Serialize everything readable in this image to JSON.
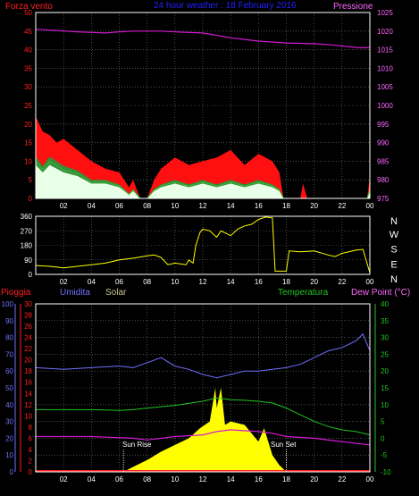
{
  "header": {
    "left": "Forza vento",
    "center": "24 hour weather : 18 February 2016",
    "right": "Pressione"
  },
  "colors": {
    "background": "#000000",
    "grid": "#7a7a7a",
    "frame": "#ffffff",
    "wind_gust": "#ff1010",
    "wind_avg": "#e8ffe8",
    "wind_dark": "#3a8a3a",
    "wind_mid": "#2fbf2f",
    "pressure": "#d21ad2",
    "direction": "#ffff00",
    "humidity": "#7070ff",
    "temperature": "#22c322",
    "dewpoint": "#d21ad2",
    "solar": "#ffff00",
    "rain": "#ff2020",
    "header_center": "#2020ff",
    "label_red": "#ff2020",
    "label_blue": "#7070ff",
    "label_solar": "#c8c890",
    "label_green": "#22c322",
    "label_pink": "#ff66ff"
  },
  "chart_data": [
    {
      "type": "line",
      "x_ticks": [
        "02",
        "04",
        "06",
        "08",
        "10",
        "12",
        "14",
        "16",
        "18",
        "20",
        "22",
        "00"
      ],
      "left_axis": {
        "ylim": [
          0,
          50
        ],
        "ticks": [
          0,
          5,
          10,
          15,
          20,
          25,
          30,
          35,
          40,
          45,
          50
        ]
      },
      "right_axis": {
        "ylim": [
          975,
          1025
        ],
        "ticks": [
          975,
          980,
          985,
          990,
          995,
          1000,
          1005,
          1010,
          1015,
          1020,
          1025
        ]
      },
      "series": [
        {
          "key": "pressure",
          "axis": "right",
          "points": [
            [
              0,
              1020.5
            ],
            [
              3,
              1019.8
            ],
            [
              5,
              1019.5
            ],
            [
              6,
              1019.8
            ],
            [
              7,
              1020.0
            ],
            [
              9,
              1020.0
            ],
            [
              10.5,
              1019.7
            ],
            [
              12,
              1019.5
            ],
            [
              14,
              1018.2
            ],
            [
              16,
              1017.3
            ],
            [
              18,
              1016.8
            ],
            [
              20,
              1016.6
            ],
            [
              21,
              1016.4
            ],
            [
              22,
              1016.0
            ],
            [
              23,
              1015.6
            ],
            [
              23.7,
              1015.5
            ],
            [
              24,
              1015.7
            ]
          ]
        },
        {
          "key": "wind_gust",
          "axis": "left",
          "points": [
            [
              0,
              22
            ],
            [
              0.5,
              18
            ],
            [
              1,
              17
            ],
            [
              1.5,
              15
            ],
            [
              2,
              16
            ],
            [
              3,
              13
            ],
            [
              4,
              10
            ],
            [
              5,
              8
            ],
            [
              6,
              7
            ],
            [
              6.7,
              3
            ],
            [
              7,
              5
            ],
            [
              7.5,
              0
            ],
            [
              8,
              0
            ],
            [
              8.5,
              5
            ],
            [
              9,
              8
            ],
            [
              10,
              11
            ],
            [
              11,
              9
            ],
            [
              12,
              10
            ],
            [
              13,
              11
            ],
            [
              14,
              13
            ],
            [
              15,
              9
            ],
            [
              16,
              12
            ],
            [
              17,
              10
            ],
            [
              17.5,
              7
            ],
            [
              17.8,
              0
            ],
            [
              19,
              0
            ],
            [
              19.2,
              4
            ],
            [
              19.5,
              0
            ],
            [
              23.8,
              0
            ],
            [
              24,
              6
            ]
          ]
        },
        {
          "key": "wind_avg",
          "axis": "left",
          "points": [
            [
              0,
              9
            ],
            [
              0.5,
              7
            ],
            [
              1,
              9
            ],
            [
              1.5,
              8
            ],
            [
              2,
              7
            ],
            [
              3,
              6
            ],
            [
              4,
              4
            ],
            [
              5,
              4
            ],
            [
              6,
              3
            ],
            [
              6.7,
              1
            ],
            [
              7,
              2
            ],
            [
              7.5,
              0
            ],
            [
              8,
              0
            ],
            [
              8.5,
              2
            ],
            [
              9,
              3
            ],
            [
              10,
              4
            ],
            [
              11,
              3
            ],
            [
              12,
              4
            ],
            [
              13,
              3
            ],
            [
              14,
              4
            ],
            [
              15,
              3
            ],
            [
              16,
              4
            ],
            [
              17,
              3
            ],
            [
              17.5,
              2
            ],
            [
              17.8,
              0
            ],
            [
              23.8,
              0
            ],
            [
              24,
              2
            ]
          ]
        }
      ]
    },
    {
      "type": "line",
      "x_ticks": [
        "02",
        "04",
        "06",
        "08",
        "10",
        "12",
        "14",
        "16",
        "18",
        "20",
        "22",
        "00"
      ],
      "left_axis": {
        "ylim": [
          0,
          360
        ],
        "ticks": [
          0,
          90,
          180,
          270,
          360
        ]
      },
      "right_labels": [
        "N",
        "W",
        "S",
        "E",
        "N"
      ],
      "series": [
        {
          "key": "direction",
          "points": [
            [
              0,
              55
            ],
            [
              1,
              50
            ],
            [
              2,
              40
            ],
            [
              3,
              50
            ],
            [
              4,
              60
            ],
            [
              5,
              70
            ],
            [
              6,
              90
            ],
            [
              7,
              100
            ],
            [
              8,
              115
            ],
            [
              8.5,
              120
            ],
            [
              9,
              105
            ],
            [
              9.5,
              60
            ],
            [
              10,
              70
            ],
            [
              10.8,
              60
            ],
            [
              11,
              90
            ],
            [
              11.3,
              70
            ],
            [
              11.5,
              180
            ],
            [
              11.8,
              260
            ],
            [
              12,
              280
            ],
            [
              12.5,
              270
            ],
            [
              13,
              230
            ],
            [
              13.3,
              270
            ],
            [
              14,
              240
            ],
            [
              14.5,
              280
            ],
            [
              15,
              300
            ],
            [
              15.5,
              310
            ],
            [
              16,
              340
            ],
            [
              16.5,
              355
            ],
            [
              17,
              350
            ],
            [
              17.2,
              20
            ],
            [
              18,
              20
            ],
            [
              18.2,
              145
            ],
            [
              19,
              140
            ],
            [
              20,
              145
            ],
            [
              21,
              120
            ],
            [
              21.5,
              110
            ],
            [
              22,
              130
            ],
            [
              23,
              150
            ],
            [
              23.5,
              155
            ],
            [
              24,
              10
            ]
          ]
        }
      ]
    },
    {
      "type": "line",
      "x_ticks": [
        "02",
        "04",
        "06",
        "08",
        "10",
        "12",
        "14",
        "16",
        "18",
        "20",
        "22",
        "00"
      ],
      "axes_labels": {
        "rain": "Pioggia",
        "humidity": "Umidita",
        "solar": "Solar",
        "temperature": "Temperatura",
        "dewpoint": "Dew Point (°C)"
      },
      "humidity_axis": {
        "ylim": [
          0,
          100
        ],
        "ticks": [
          0,
          10,
          20,
          30,
          40,
          50,
          60,
          70,
          80,
          90,
          100
        ]
      },
      "rain_axis": {
        "ylim": [
          0,
          30
        ],
        "ticks": [
          0,
          2,
          4,
          6,
          8,
          10,
          12,
          14,
          16,
          18,
          20,
          22,
          24,
          26,
          28,
          30
        ]
      },
      "temp_axis": {
        "ylim": [
          -10,
          40
        ],
        "ticks": [
          -10,
          -5,
          0,
          5,
          10,
          15,
          20,
          25,
          30,
          35,
          40
        ]
      },
      "annotations": [
        "Sun Rise",
        "Sun Set"
      ],
      "series": [
        {
          "key": "humidity",
          "axis": "humidity",
          "points": [
            [
              0,
              62
            ],
            [
              2,
              61
            ],
            [
              4,
              62
            ],
            [
              6,
              63
            ],
            [
              7,
              62
            ],
            [
              8,
              65
            ],
            [
              9,
              68
            ],
            [
              10,
              63
            ],
            [
              11,
              61
            ],
            [
              12,
              58
            ],
            [
              13,
              56
            ],
            [
              14,
              58
            ],
            [
              15,
              60
            ],
            [
              16,
              60
            ],
            [
              17,
              61
            ],
            [
              18,
              62
            ],
            [
              19,
              64
            ],
            [
              20,
              68
            ],
            [
              21,
              72
            ],
            [
              22,
              74
            ],
            [
              23,
              78
            ],
            [
              23.5,
              82
            ],
            [
              24,
              72
            ]
          ]
        },
        {
          "key": "temperature",
          "axis": "temp",
          "points": [
            [
              0,
              8.5
            ],
            [
              2,
              8.5
            ],
            [
              4,
              8.5
            ],
            [
              6,
              8.3
            ],
            [
              7,
              8.5
            ],
            [
              8,
              9
            ],
            [
              10,
              9.8
            ],
            [
              12,
              11
            ],
            [
              13,
              12
            ],
            [
              14,
              11.5
            ],
            [
              15,
              11.3
            ],
            [
              16,
              11
            ],
            [
              17,
              10.5
            ],
            [
              18,
              9
            ],
            [
              19,
              7
            ],
            [
              20,
              5
            ],
            [
              21,
              3.5
            ],
            [
              22,
              2.5
            ],
            [
              23,
              2
            ],
            [
              24,
              1
            ]
          ]
        },
        {
          "key": "dewpoint",
          "axis": "temp",
          "points": [
            [
              0,
              0.5
            ],
            [
              4,
              0.5
            ],
            [
              7,
              0
            ],
            [
              8,
              -0.5
            ],
            [
              10,
              0.5
            ],
            [
              12,
              1
            ],
            [
              13,
              2
            ],
            [
              14,
              2.5
            ],
            [
              16,
              2
            ],
            [
              17,
              1.5
            ],
            [
              18,
              0.5
            ],
            [
              20,
              0
            ],
            [
              22,
              -1
            ],
            [
              24,
              -2
            ]
          ]
        },
        {
          "key": "solar",
          "axis": "humidity",
          "points": [
            [
              6.3,
              0
            ],
            [
              7,
              3
            ],
            [
              8,
              7
            ],
            [
              9,
              12
            ],
            [
              10,
              16
            ],
            [
              11,
              20
            ],
            [
              11.8,
              26
            ],
            [
              12.5,
              30
            ],
            [
              12.9,
              50
            ],
            [
              13,
              38
            ],
            [
              13.3,
              50
            ],
            [
              13.6,
              28
            ],
            [
              14,
              30
            ],
            [
              15,
              28
            ],
            [
              16,
              18
            ],
            [
              16.4,
              26
            ],
            [
              17,
              10
            ],
            [
              17.5,
              4
            ],
            [
              18,
              0
            ]
          ]
        }
      ]
    }
  ]
}
